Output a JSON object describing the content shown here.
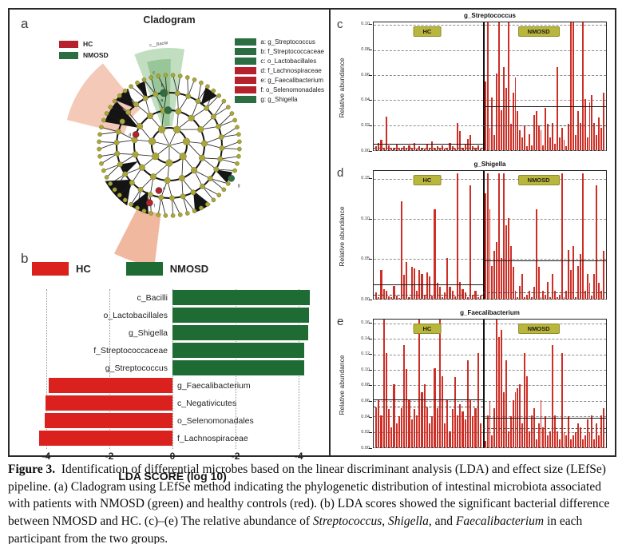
{
  "colors": {
    "hc_red": "#b5212c",
    "nmosd_green": "#2c6e42",
    "lda_red": "#da211d",
    "lda_green": "#1e6b33",
    "bar_red": "#cd2f26",
    "olive": "#a9a63b",
    "chip_bg": "#b9b63c",
    "wedge_green_light": "#b2d6b2",
    "wedge_green_dark": "#6fae6f",
    "wedge_pink": "#f3c0ac"
  },
  "panel_a": {
    "label": "a",
    "title": "Cladogram",
    "wedge_label": "c__Bacilli",
    "group_legend": [
      {
        "label": "HC",
        "color": "#b5212c"
      },
      {
        "label": "NMOSD",
        "color": "#2c6e42"
      }
    ],
    "taxa_legend": [
      {
        "label": "a: g_Streptococcus",
        "color": "#2c6e42"
      },
      {
        "label": "b: f_Streptococcaceae",
        "color": "#2c6e42"
      },
      {
        "label": "c: o_Lactobacillales",
        "color": "#2c6e42"
      },
      {
        "label": "d: f_Lachnospiraceae",
        "color": "#b5212c"
      },
      {
        "label": "e: g_Faecalibacterium",
        "color": "#b5212c"
      },
      {
        "label": "f: o_Selenomonadales",
        "color": "#b5212c"
      },
      {
        "label": "g: g_Shigella",
        "color": "#2c6e42"
      }
    ]
  },
  "chart_data": {
    "lda": {
      "type": "bar",
      "orientation": "horizontal",
      "panel_label": "b",
      "xlabel": "LDA SCORE (log 10)",
      "xlim": [
        -4.4,
        4.4
      ],
      "tick_values": [
        -4,
        -2,
        0,
        2,
        4
      ],
      "tick_labels": [
        "-4",
        "-2",
        "0",
        "-2",
        "-4"
      ],
      "legend": [
        {
          "label": "HC",
          "color": "#da211d"
        },
        {
          "label": "NMOSD",
          "color": "#1e6b33"
        }
      ],
      "bars": [
        {
          "name": "c_Bacilli",
          "value": 4.35,
          "group": "NMOSD"
        },
        {
          "name": "o_Lactobacillales",
          "value": 4.32,
          "group": "NMOSD"
        },
        {
          "name": "g_Shigella",
          "value": 4.3,
          "group": "NMOSD"
        },
        {
          "name": "f_Streptococcaceae",
          "value": 4.18,
          "group": "NMOSD"
        },
        {
          "name": "g_Streptococcus",
          "value": 4.18,
          "group": "NMOSD"
        },
        {
          "name": "g_Faecalibacterium",
          "value": -3.92,
          "group": "HC"
        },
        {
          "name": "c_Negativicutes",
          "value": -4.02,
          "group": "HC"
        },
        {
          "name": "o_Selenomonadales",
          "value": -4.05,
          "group": "HC"
        },
        {
          "name": "f_Lachnospiraceae",
          "value": -4.22,
          "group": "HC"
        }
      ]
    },
    "abundance": [
      {
        "type": "bar",
        "panel_label": "c",
        "title": "g_Streptococcus",
        "ylabel": "Relative abundance",
        "ymax": 0.102,
        "ytick_values": [
          0.1,
          0.08,
          0.06,
          0.04,
          0.02,
          0.0
        ],
        "ytick_labels": [
          "0.10",
          "0.08",
          "0.06",
          "0.04",
          "0.02",
          "0.00"
        ],
        "group_labels": [
          "HC",
          "NMOSD"
        ],
        "hc": {
          "mean_line": 0.005,
          "dash_line": 0.002,
          "values": [
            0.003,
            0.006,
            0.008,
            0.002,
            0.027,
            0.004,
            0.001,
            0.002,
            0.005,
            0.001,
            0.002,
            0.003,
            0.001,
            0.004,
            0.002,
            0.006,
            0.001,
            0.003,
            0.002,
            0.001,
            0.005,
            0.002,
            0.007,
            0.001,
            0.003,
            0.002,
            0.004,
            0.001,
            0.002,
            0.006,
            0.003,
            0.001,
            0.022,
            0.015,
            0.002,
            0.005,
            0.009,
            0.012,
            0.003,
            0.002,
            0.004,
            0.001
          ]
        },
        "nmosd": {
          "mean_line": 0.035,
          "dash_line": 0.02,
          "values": [
            0.055,
            0.102,
            0.018,
            0.042,
            0.012,
            0.061,
            0.102,
            0.032,
            0.066,
            0.05,
            0.102,
            0.021,
            0.046,
            0.058,
            0.031,
            0.016,
            0.01,
            0.02,
            0.003,
            0.013,
            0.004,
            0.028,
            0.031,
            0.02,
            0.016,
            0.004,
            0.034,
            0.021,
            0.01,
            0.022,
            0.005,
            0.066,
            0.01,
            0.018,
            0.008,
            0.003,
            0.021,
            0.102,
            0.102,
            0.012,
            0.031,
            0.022,
            0.102,
            0.041,
            0.01,
            0.038,
            0.044,
            0.022,
            0.012,
            0.026,
            0.018,
            0.046
          ]
        }
      },
      {
        "type": "bar",
        "panel_label": "d",
        "title": "g_Shigella",
        "ylabel": "Relative abundance",
        "ymax": 0.16,
        "ytick_values": [
          0.15,
          0.1,
          0.05,
          0.0
        ],
        "ytick_labels": [
          "0.15",
          "0.10",
          "0.05",
          "0.00"
        ],
        "group_labels": [
          "HC",
          "NMOSD"
        ],
        "hc": {
          "mean_line": 0.018,
          "dash_line": 0.005,
          "values": [
            0.008,
            0.002,
            0.036,
            0.012,
            0.01,
            0.003,
            0.002,
            0.016,
            0.004,
            0.001,
            0.122,
            0.03,
            0.046,
            0.002,
            0.04,
            0.038,
            0.01,
            0.036,
            0.031,
            0.005,
            0.033,
            0.028,
            0.004,
            0.112,
            0.02,
            0.015,
            0.002,
            0.008,
            0.051,
            0.015,
            0.01,
            0.003,
            0.157,
            0.021,
            0.012,
            0.008,
            0.002,
            0.142,
            0.005,
            0.01,
            0.002,
            0.004
          ]
        },
        "nmosd": {
          "mean_line": 0.048,
          "dash_line": 0.008,
          "values": [
            0.132,
            0.157,
            0.112,
            0.041,
            0.06,
            0.071,
            0.157,
            0.051,
            0.157,
            0.092,
            0.101,
            0.066,
            0.04,
            0.01,
            0.002,
            0.016,
            0.031,
            0.002,
            0.005,
            0.01,
            0.002,
            0.015,
            0.112,
            0.04,
            0.002,
            0.01,
            0.005,
            0.021,
            0.002,
            0.031,
            0.01,
            0.002,
            0.005,
            0.157,
            0.002,
            0.01,
            0.061,
            0.036,
            0.066,
            0.002,
            0.041,
            0.056,
            0.157,
            0.01,
            0.031,
            0.02,
            0.004,
            0.031,
            0.142,
            0.02,
            0.01,
            0.06
          ]
        }
      },
      {
        "type": "bar",
        "panel_label": "e",
        "title": "g_Faecalibacterium",
        "ylabel": "Relative abundance",
        "ymax": 0.165,
        "ytick_values": [
          0.16,
          0.14,
          0.12,
          0.1,
          0.08,
          0.06,
          0.04,
          0.02,
          0.0
        ],
        "ytick_labels": [
          "0.16",
          "0.14",
          "0.12",
          "0.10",
          "0.08",
          "0.06",
          "0.04",
          "0.02",
          "0.00"
        ],
        "group_labels": [
          "HC",
          "NMOSD"
        ],
        "hc": {
          "mean_line": 0.062,
          "dash_line": 0.053,
          "values": [
            0.052,
            0.061,
            0.041,
            0.165,
            0.122,
            0.05,
            0.026,
            0.081,
            0.031,
            0.04,
            0.051,
            0.132,
            0.101,
            0.061,
            0.036,
            0.05,
            0.041,
            0.165,
            0.071,
            0.082,
            0.052,
            0.031,
            0.04,
            0.102,
            0.051,
            0.165,
            0.092,
            0.031,
            0.061,
            0.021,
            0.05,
            0.091,
            0.041,
            0.056,
            0.046,
            0.036,
            0.112,
            0.061,
            0.04,
            0.051,
            0.122,
            0.031
          ]
        },
        "nmosd": {
          "mean_line": 0.038,
          "dash_line": 0.025,
          "values": [
            0.008,
            0.041,
            0.06,
            0.016,
            0.051,
            0.165,
            0.142,
            0.152,
            0.071,
            0.112,
            0.021,
            0.04,
            0.061,
            0.071,
            0.076,
            0.081,
            0.031,
            0.122,
            0.092,
            0.021,
            0.041,
            0.051,
            0.01,
            0.031,
            0.061,
            0.026,
            0.04,
            0.016,
            0.021,
            0.132,
            0.041,
            0.021,
            0.01,
            0.122,
            0.02,
            0.016,
            0.04,
            0.01,
            0.016,
            0.02,
            0.031,
            0.026,
            0.01,
            0.016,
            0.036,
            0.02,
            0.041,
            0.01,
            0.031,
            0.016,
            0.041,
            0.051
          ]
        }
      }
    ]
  },
  "caption": {
    "segments": [
      {
        "text": "Figure 3.",
        "bold": true
      },
      {
        "text": "  Identification of differential microbes based on the linear discriminant analysis (LDA) and effect size (LEfSe) pipeline. (a) Cladogram using LEfSe method indicating the phylogenetic distribution of intestinal microbiota associated with patients with NMOSD (green) and healthy controls (red). (b) LDA scores showed the significant bacterial difference between NMOSD and HC. (c)–(e) The relative abundance of "
      },
      {
        "text": "Streptococcus",
        "italic": true
      },
      {
        "text": ", "
      },
      {
        "text": "Shigella",
        "italic": true
      },
      {
        "text": ", and "
      },
      {
        "text": "Faecalibacterium",
        "italic": true
      },
      {
        "text": " in each participant from the two groups."
      }
    ]
  }
}
